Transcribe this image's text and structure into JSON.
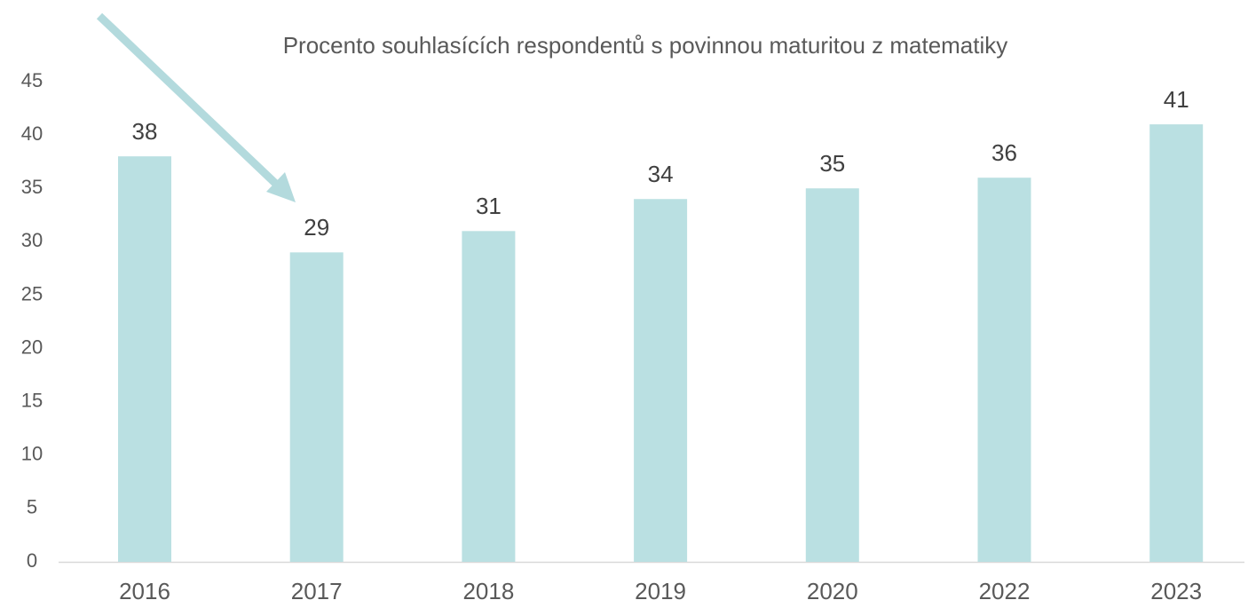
{
  "chart_data": {
    "type": "bar",
    "title": "Procento souhlasících respondentů s povinnou maturitou z matematiky",
    "categories": [
      "2016",
      "2017",
      "2018",
      "2019",
      "2020",
      "2022",
      "2023"
    ],
    "values": [
      38,
      29,
      31,
      34,
      35,
      36,
      41
    ],
    "color": "#bae0e2",
    "ylim": [
      0,
      45
    ],
    "yticks": [
      0,
      5,
      10,
      15,
      20,
      25,
      30,
      35,
      40,
      45
    ],
    "grid": false
  }
}
